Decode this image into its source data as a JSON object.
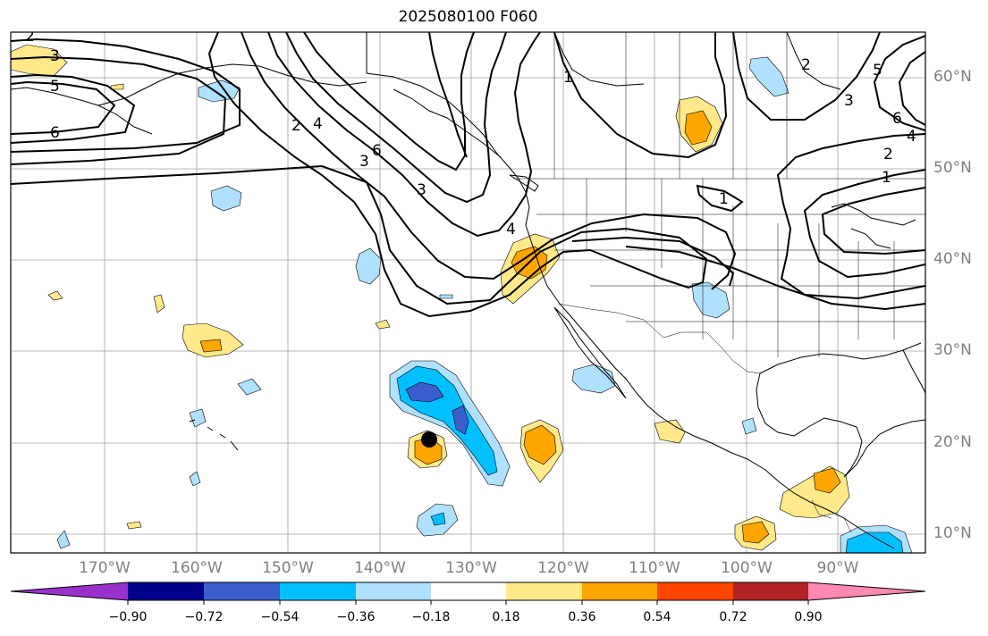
{
  "title": "2025080100 F060",
  "lon_labels": [
    "170°W",
    "160°W",
    "150°W",
    "140°W",
    "130°W",
    "120°W",
    "110°W",
    "100°W",
    "90°W"
  ],
  "lat_labels": [
    "60°N",
    "50°N",
    "40°N",
    "30°N",
    "20°N",
    "10°N"
  ],
  "contour_labels": [
    "2",
    "3",
    "5",
    "6",
    "2",
    "3",
    "4",
    "6",
    "3",
    "1",
    "2",
    "3",
    "4",
    "5",
    "6",
    "1",
    "2",
    "4",
    "1"
  ],
  "colorbar": {
    "ticks": [
      "−0.90",
      "−0.72",
      "−0.54",
      "−0.36",
      "−0.18",
      "0.18",
      "0.36",
      "0.54",
      "0.72",
      "0.90"
    ],
    "colors": [
      "#9932cc",
      "#00008b",
      "#3a5fcd",
      "#00bfff",
      "#afe1ff",
      "#ffffff",
      "#ffe98a",
      "#ffa500",
      "#ff4500",
      "#b22222",
      "#ff89b0"
    ]
  },
  "shading_colors": {
    "light_blue": "#afe1ff",
    "cyan": "#00bfff",
    "royal_blue": "#3a5fcd",
    "light_yellow": "#ffe98a",
    "orange": "#ffa500"
  }
}
